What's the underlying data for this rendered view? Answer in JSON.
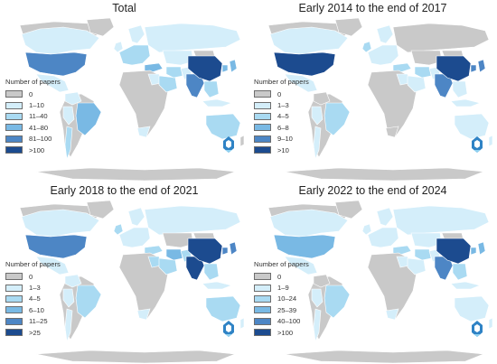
{
  "legend_title": "Number of papers",
  "colors": {
    "gray": "#c9c9c9",
    "c1": "#d4eefa",
    "c2": "#a9daf2",
    "c3": "#79b9e4",
    "c4": "#4d86c5",
    "c5": "#1c4b8f",
    "border": "#ffffff"
  },
  "panels": [
    {
      "title": "Total",
      "legend": [
        "0",
        "1–10",
        "11–40",
        "41–80",
        "81–100",
        ">100"
      ],
      "regions": {
        "north_america": 0,
        "canada": 1,
        "usa": 4,
        "mexico": 1,
        "greenland": 0,
        "south_america": 0,
        "brazil": 3,
        "peru": 1,
        "colombia": 1,
        "chile": 2,
        "uk": 1,
        "europe": 2,
        "scandinavia": 1,
        "russia": 1,
        "turkey": 3,
        "iran": 2,
        "africa": 0,
        "egypt": 1,
        "saudi": 2,
        "south_africa": 1,
        "india": 4,
        "pakistan": 1,
        "central_asia": 1,
        "mongolia": 0,
        "china": 5,
        "korea": 3,
        "japan": 3,
        "southeast_asia": 2,
        "indonesia": 1,
        "australia": 2,
        "new_zealand": 0
      }
    },
    {
      "title": "Early 2014 to the end of 2017",
      "legend": [
        "0",
        "1–3",
        "4–5",
        "6–8",
        "9–10",
        ">10"
      ],
      "regions": {
        "north_america": 0,
        "canada": 1,
        "usa": 5,
        "mexico": 1,
        "greenland": 0,
        "south_america": 0,
        "brazil": 2,
        "peru": 1,
        "colombia": 0,
        "chile": 1,
        "uk": 2,
        "europe": 1,
        "scandinavia": 1,
        "russia": 0,
        "turkey": 2,
        "iran": 2,
        "africa": 0,
        "egypt": 1,
        "saudi": 1,
        "south_africa": 0,
        "india": 4,
        "pakistan": 1,
        "central_asia": 0,
        "mongolia": 0,
        "china": 5,
        "korea": 4,
        "japan": 4,
        "southeast_asia": 1,
        "indonesia": 1,
        "australia": 1,
        "new_zealand": 1
      }
    },
    {
      "title": "Early 2018 to the end of 2021",
      "legend": [
        "0",
        "1–3",
        "4–5",
        "6–10",
        "11–25",
        ">25"
      ],
      "regions": {
        "north_america": 0,
        "canada": 1,
        "usa": 4,
        "mexico": 1,
        "greenland": 0,
        "south_america": 0,
        "brazil": 2,
        "peru": 1,
        "colombia": 1,
        "chile": 1,
        "uk": 2,
        "europe": 1,
        "scandinavia": 1,
        "russia": 1,
        "turkey": 2,
        "iran": 3,
        "africa": 0,
        "egypt": 2,
        "saudi": 2,
        "south_africa": 1,
        "india": 5,
        "pakistan": 2,
        "central_asia": 0,
        "mongolia": 0,
        "china": 5,
        "korea": 4,
        "japan": 4,
        "southeast_asia": 2,
        "indonesia": 1,
        "australia": 2,
        "new_zealand": 1
      }
    },
    {
      "title": "Early 2022 to the end of 2024",
      "legend": [
        "0",
        "1–9",
        "10–24",
        "25–39",
        "40–100",
        ">100"
      ],
      "regions": {
        "north_america": 0,
        "canada": 1,
        "usa": 3,
        "mexico": 1,
        "greenland": 0,
        "south_america": 0,
        "brazil": 2,
        "peru": 1,
        "colombia": 0,
        "chile": 1,
        "uk": 1,
        "europe": 1,
        "scandinavia": 1,
        "russia": 1,
        "turkey": 2,
        "iran": 2,
        "africa": 0,
        "egypt": 1,
        "saudi": 1,
        "south_africa": 1,
        "india": 4,
        "pakistan": 1,
        "central_asia": 1,
        "mongolia": 0,
        "china": 5,
        "korea": 3,
        "japan": 3,
        "southeast_asia": 2,
        "indonesia": 1,
        "australia": 1,
        "new_zealand": 1
      }
    }
  ]
}
